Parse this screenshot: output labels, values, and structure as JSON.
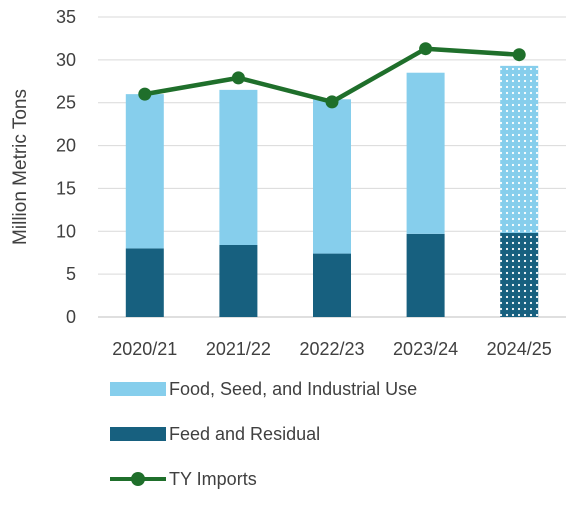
{
  "chart_data": {
    "type": "bar",
    "categories": [
      "2020/21",
      "2021/22",
      "2022/23",
      "2023/24",
      "2024/25"
    ],
    "series": [
      {
        "name": "Feed and Residual",
        "kind": "stacked-bar",
        "color": "#17607f",
        "values": [
          8.0,
          8.4,
          7.4,
          9.7,
          9.8
        ]
      },
      {
        "name": "Food, Seed, and Industrial Use",
        "kind": "stacked-bar",
        "color": "#86ceec",
        "values": [
          18.0,
          18.1,
          18.0,
          18.8,
          19.5
        ]
      },
      {
        "name": "TY Imports",
        "kind": "line",
        "color": "#1f6f2b",
        "values": [
          26.0,
          27.9,
          25.1,
          31.3,
          30.6
        ]
      }
    ],
    "projected_categories": [
      "2024/25"
    ],
    "ylabel": "Million Metric Tons",
    "xlabel": "",
    "ylim": [
      0,
      35
    ],
    "yticks": [
      0,
      5,
      10,
      15,
      20,
      25,
      30,
      35
    ],
    "grid": true,
    "legend_position": "bottom"
  },
  "legend": {
    "items": [
      {
        "label": "Food, Seed, and Industrial Use",
        "color": "#86ceec",
        "icon": "bar-swatch"
      },
      {
        "label": "Feed and Residual",
        "color": "#17607f",
        "icon": "bar-swatch"
      },
      {
        "label": "TY Imports",
        "color": "#1f6f2b",
        "icon": "line-with-marker"
      }
    ]
  }
}
